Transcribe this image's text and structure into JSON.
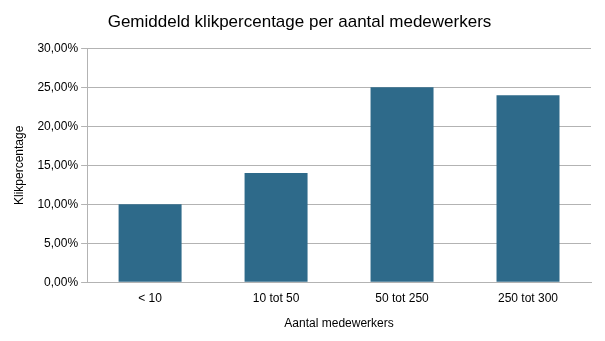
{
  "chart_data": {
    "type": "bar",
    "title": "Gemiddeld klikpercentage per aantal medewerkers",
    "x_label": "Aantal medewerkers",
    "y_label": "Klikpercentage",
    "categories": [
      "< 10",
      "10 tot 50",
      "50 tot 250",
      "250 tot 300"
    ],
    "values": [
      10,
      14,
      25,
      24
    ],
    "color": "#2e6a8a",
    "ylim": [
      0,
      30
    ],
    "yticks": [
      {
        "value": 0,
        "label": "0,00%"
      },
      {
        "value": 5,
        "label": "5,00%"
      },
      {
        "value": 10,
        "label": "10,00%"
      },
      {
        "value": 15,
        "label": "15,00%"
      },
      {
        "value": 20,
        "label": "20,00%"
      },
      {
        "value": 25,
        "label": "25,00%"
      },
      {
        "value": 30,
        "label": "30,00%"
      }
    ],
    "grid": true
  }
}
